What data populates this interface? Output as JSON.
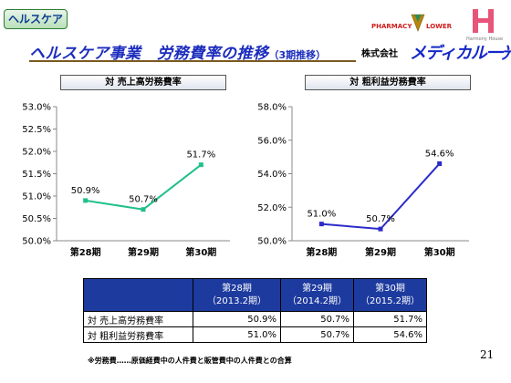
{
  "header": {
    "segment_tab": "ヘルスケア",
    "title": "ヘルスケア事業　労務費率の推移",
    "title_sub": "（3期推移）",
    "company_label": "株式会社",
    "company_name": "メディカル一光",
    "brand_pharmacy": "PHARMACY FLOWER",
    "brand_harmony": "Harmony House"
  },
  "colors": {
    "series1": "#1fc08a",
    "series2": "#2b2bc9",
    "table_header": "#1d3a9e"
  },
  "chart_data": [
    {
      "type": "line",
      "title": "対 売上高労務費率",
      "categories": [
        "第28期",
        "第29期",
        "第30期"
      ],
      "values": [
        50.9,
        50.7,
        51.7
      ],
      "labels": [
        "50.9%",
        "50.7%",
        "51.7%"
      ],
      "ylim": [
        50.0,
        53.0
      ],
      "yticks": [
        "50.0%",
        "50.5%",
        "51.0%",
        "51.5%",
        "52.0%",
        "52.5%",
        "53.0%"
      ],
      "grid": false
    },
    {
      "type": "line",
      "title": "対 粗利益労務費率",
      "categories": [
        "第28期",
        "第29期",
        "第30期"
      ],
      "values": [
        51.0,
        50.7,
        54.6
      ],
      "labels": [
        "51.0%",
        "50.7%",
        "54.6%"
      ],
      "ylim": [
        50.0,
        58.0
      ],
      "yticks": [
        "50.0%",
        "52.0%",
        "54.0%",
        "56.0%",
        "58.0%"
      ],
      "grid": false
    }
  ],
  "table": {
    "columns": [
      {
        "period": "第28期",
        "date": "（2013.2期）"
      },
      {
        "period": "第29期",
        "date": "（2014.2期）"
      },
      {
        "period": "第30期",
        "date": "（2015.2期）"
      }
    ],
    "rows": [
      {
        "label": "対 売上高労務費率",
        "values": [
          "50.9%",
          "50.7%",
          "51.7%"
        ]
      },
      {
        "label": "対 粗利益労務費率",
        "values": [
          "51.0%",
          "50.7%",
          "54.6%"
        ]
      }
    ]
  },
  "footnote": "※労務費……原価経費中の人件費と販管費中の人件費との合算",
  "page_number": "21"
}
